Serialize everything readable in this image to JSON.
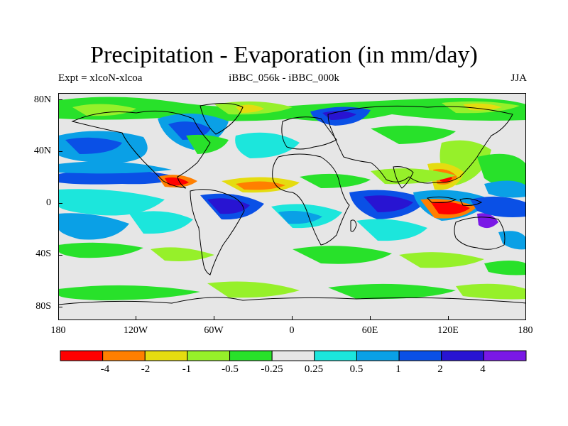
{
  "figure": {
    "title": "Precipitation - Evaporation (in mm/day)",
    "left_string": "Expt = xlcoN-xlcoa",
    "center_string": "iBBC_056k - iBBC_000k",
    "right_string": "JJA"
  },
  "axes": {
    "y_ticks": [
      "80N",
      "40N",
      "0",
      "40S",
      "80S"
    ],
    "x_ticks": [
      "180",
      "120W",
      "60W",
      "0",
      "60E",
      "120E",
      "180"
    ]
  },
  "colorbar": {
    "labels": [
      "-4",
      "-2",
      "-1",
      "-0.5",
      "-0.25",
      "0.25",
      "0.5",
      "1",
      "2",
      "4"
    ],
    "colors": [
      "#ff0000",
      "#ff7f00",
      "#e5dc10",
      "#96f02a",
      "#28e12a",
      "#e6e6e6",
      "#1ce6dc",
      "#0aa0e6",
      "#0a50e6",
      "#2814d2",
      "#7a18e6"
    ]
  },
  "map_palette": {
    "neutral": "#e6e6e6",
    "coastline": "#000000"
  }
}
